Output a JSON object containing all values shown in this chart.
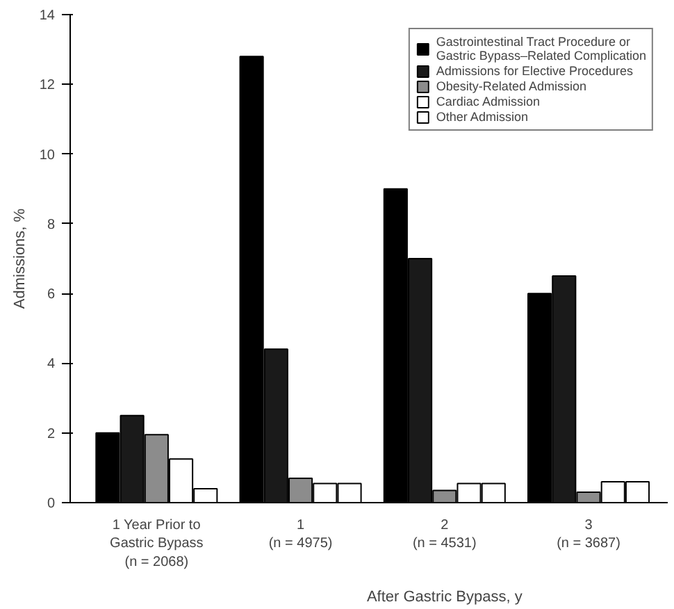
{
  "chart_data": {
    "type": "bar",
    "ylabel": "Admissions, %",
    "xlabel": "After Gastric Bypass, y",
    "categories": [
      "1 Year Prior to\nGastric Bypass\n(n = 2068)",
      "1\n(n = 4975)",
      "2\n(n = 4531)",
      "3\n(n = 3687)"
    ],
    "series": [
      {
        "name": "Gastrointestinal Tract Procedure or\nGastric Bypass–Related Complication",
        "color": "#000000",
        "values": [
          2.0,
          12.8,
          9.0,
          6.0
        ]
      },
      {
        "name": "Admissions for Elective Procedures",
        "color": "#1a1a1a",
        "values": [
          2.5,
          4.4,
          7.0,
          6.5
        ]
      },
      {
        "name": "Obesity-Related Admission",
        "color": "#8c8c8c",
        "values": [
          1.95,
          0.7,
          0.35,
          0.3
        ]
      },
      {
        "name": "Cardiac Admission",
        "color": "#ffffff",
        "values": [
          1.25,
          0.55,
          0.55,
          0.6
        ]
      },
      {
        "name": "Other Admission",
        "color": "#ffffff",
        "values": [
          0.4,
          0.55,
          0.55,
          0.6
        ]
      }
    ],
    "ylim": [
      0,
      14
    ],
    "yticks": [
      0,
      2,
      4,
      6,
      8,
      10,
      12,
      14
    ],
    "grid": false,
    "legend": "top right"
  }
}
